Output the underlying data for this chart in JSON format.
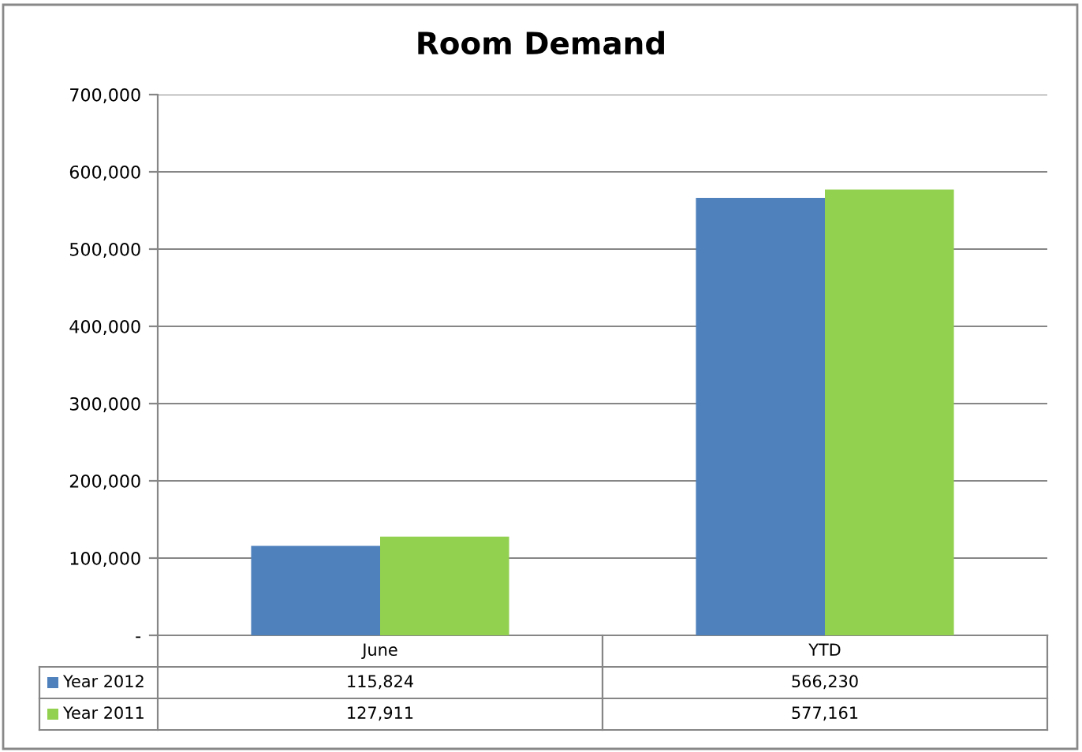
{
  "chart_data": {
    "type": "bar",
    "title": "Room Demand",
    "categories": [
      "June",
      "YTD"
    ],
    "series": [
      {
        "name": "Year 2012",
        "color": "#4f81bd",
        "values": [
          115824,
          566230
        ],
        "value_labels": [
          "115,824",
          "566,230"
        ]
      },
      {
        "name": "Year 2011",
        "color": "#92d050",
        "values": [
          127911,
          577161
        ],
        "value_labels": [
          "127,911",
          "577,161"
        ]
      }
    ],
    "ylim": [
      0,
      700000
    ],
    "yticks": [
      {
        "value": 0,
        "label": "-"
      },
      {
        "value": 100000,
        "label": "100,000"
      },
      {
        "value": 200000,
        "label": "200,000"
      },
      {
        "value": 300000,
        "label": "300,000"
      },
      {
        "value": 400000,
        "label": "400,000"
      },
      {
        "value": 500000,
        "label": "500,000"
      },
      {
        "value": 600000,
        "label": "600,000"
      },
      {
        "value": 700000,
        "label": "700,000"
      }
    ],
    "grid": "y",
    "legend": "bottom"
  }
}
